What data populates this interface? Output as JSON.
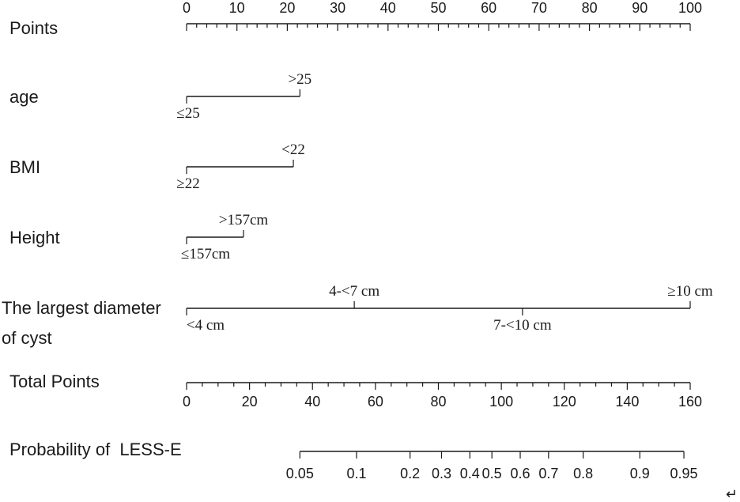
{
  "chart_data": {
    "type": "nomogram",
    "rows": [
      {
        "id": "points",
        "label": "Points",
        "scale": "points",
        "min": 0,
        "max": 100,
        "major_ticks": [
          0,
          10,
          20,
          30,
          40,
          50,
          60,
          70,
          80,
          90,
          100
        ],
        "minor_step": 2
      },
      {
        "id": "age",
        "label": "age",
        "scale": "categorical",
        "levels": [
          {
            "label": "≤25",
            "points": 0,
            "label_pos": "below"
          },
          {
            "label": ">25",
            "points": 22.5,
            "label_pos": "above"
          }
        ]
      },
      {
        "id": "bmi",
        "label": "BMI",
        "scale": "categorical",
        "levels": [
          {
            "label": "≥22",
            "points": 0,
            "label_pos": "below"
          },
          {
            "label": "<22",
            "points": 21.2,
            "label_pos": "above"
          }
        ]
      },
      {
        "id": "height",
        "label": "Height",
        "scale": "categorical",
        "levels": [
          {
            "label": "≤157cm",
            "points": 0,
            "label_pos": "below"
          },
          {
            "label": ">157cm",
            "points": 11.3,
            "label_pos": "above"
          }
        ]
      },
      {
        "id": "cyst",
        "label_lines": [
          "The largest diameter",
          "of cyst"
        ],
        "scale": "categorical",
        "levels": [
          {
            "label": "<4 cm",
            "points": 0,
            "label_pos": "below"
          },
          {
            "label": "4-<7 cm",
            "points": 33.3,
            "label_pos": "above"
          },
          {
            "label": "7-<10 cm",
            "points": 66.7,
            "label_pos": "below"
          },
          {
            "label": "≥10 cm",
            "points": 100,
            "label_pos": "above"
          }
        ]
      },
      {
        "id": "total",
        "label": "Total Points",
        "scale": "total",
        "min": 0,
        "max": 160,
        "major_ticks": [
          0,
          20,
          40,
          60,
          80,
          100,
          120,
          140,
          160
        ],
        "minor_step": 5
      },
      {
        "id": "prob",
        "label": "Probability of  LESS-E",
        "scale": "probability",
        "ticks": [
          {
            "label": "0.05",
            "total": 36
          },
          {
            "label": "0.1",
            "total": 54
          },
          {
            "label": "0.2",
            "total": 71
          },
          {
            "label": "0.3",
            "total": 81
          },
          {
            "label": "0.4",
            "total": 90
          },
          {
            "label": "0.5",
            "total": 97
          },
          {
            "label": "0.6",
            "total": 106
          },
          {
            "label": "0.7",
            "total": 115
          },
          {
            "label": "0.8",
            "total": 126
          },
          {
            "label": "0.9",
            "total": 144
          },
          {
            "label": "0.95",
            "total": 158
          }
        ]
      }
    ],
    "footer_mark": "↵"
  }
}
